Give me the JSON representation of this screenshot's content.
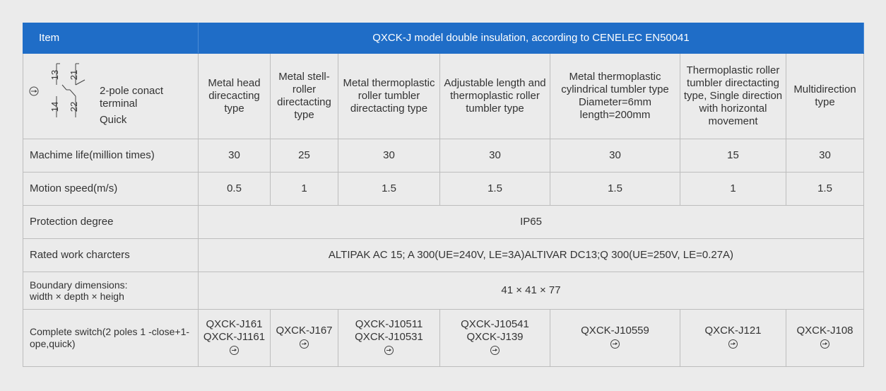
{
  "header": {
    "item": "Item",
    "title": "QXCK-J model double insulation, according to CENELEC EN50041"
  },
  "contact": {
    "label_line1": "2-pole conact",
    "label_line2": "terminal",
    "label_line3": "Quick",
    "terminal_13": "13",
    "terminal_21": "21",
    "terminal_14": "14",
    "terminal_22": "22"
  },
  "types": [
    {
      "line1": "Metal head",
      "line2": "direcacting",
      "line3": "type"
    },
    {
      "line1": "Metal stell-",
      "line2": "roller",
      "line3": "directacting",
      "line4": "type"
    },
    {
      "line1": "Metal thermoplastic",
      "line2": "roller tumbler",
      "line3": "directacting type"
    },
    {
      "line1": "Adjustable length and",
      "line2": "thermoplastic roller",
      "line3": "tumbler type"
    },
    {
      "line1": "Metal thermoplastic",
      "line2": "cylindrical tumbler type",
      "line3": "Diameter=6mm",
      "line4": "length=200mm"
    },
    {
      "line1": "Thermoplastic roller",
      "line2": "tumbler directacting",
      "line3": "type, Single direction",
      "line4": "with horizontal",
      "line5": "movement"
    },
    {
      "line1": "Multidirection",
      "line2": "type"
    }
  ],
  "rows": {
    "life": {
      "label": "Machime life(million times)",
      "values": [
        "30",
        "25",
        "30",
        "30",
        "30",
        "15",
        "30"
      ]
    },
    "speed": {
      "label": "Motion speed(m/s)",
      "values": [
        "0.5",
        "1",
        "1.5",
        "1.5",
        "1.5",
        "1",
        "1.5"
      ]
    },
    "protection": {
      "label": "Protection degree",
      "value": "IP65"
    },
    "rated": {
      "label": "Rated work charcters",
      "value": "ALTIPAK AC 15; A 300(UE=240V,  LE=3A)ALTIVAR DC13;Q 300(UE=250V,  LE=0.27A)"
    },
    "boundary": {
      "label_line1": "Boundary dimensions:",
      "label_line2": "width × depth × heigh",
      "value": "41 × 41 × 77"
    },
    "complete": {
      "label_line1": "Complete switch(2 poles 1 -close+1-",
      "label_line2": "ope,quick)",
      "codes": [
        [
          "QXCK-J161",
          "QXCK-J1161"
        ],
        [
          "QXCK-J167"
        ],
        [
          "QXCK-J10511",
          "QXCK-J10531"
        ],
        [
          "QXCK-J10541",
          "QXCK-J139"
        ],
        [
          "QXCK-J10559"
        ],
        [
          "QXCK-J121"
        ],
        [
          "QXCK-J108"
        ]
      ]
    }
  }
}
